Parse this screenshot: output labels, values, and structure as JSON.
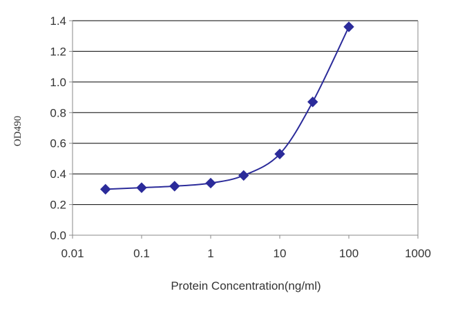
{
  "chart_data": {
    "type": "line",
    "x_scale": "log",
    "xlabel": "Protein Concentration(ng/ml)",
    "ylabel": "OD490",
    "xlim": [
      0.01,
      1000
    ],
    "ylim": [
      0,
      1.4
    ],
    "x_ticks": [
      "0.01",
      "0.1",
      "1",
      "10",
      "100",
      "1000"
    ],
    "y_ticks": [
      "0.0",
      "0.2",
      "0.4",
      "0.6",
      "0.8",
      "1.0",
      "1.2",
      "1.4"
    ],
    "grid": "horizontal",
    "series": [
      {
        "x": [
          0.03,
          0.1,
          0.3,
          1,
          3,
          10,
          30,
          100
        ],
        "y": [
          0.3,
          0.31,
          0.32,
          0.34,
          0.39,
          0.53,
          0.87,
          1.36
        ]
      }
    ],
    "colors": {
      "series": "#2b2b9a",
      "grid": "#000000",
      "axis": "#888888"
    }
  }
}
